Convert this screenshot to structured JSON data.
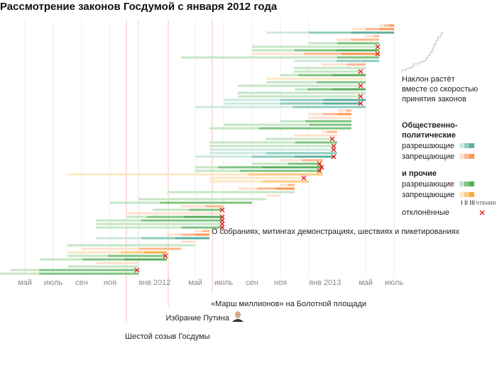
{
  "chart_data": {
    "type": "bar",
    "subtype": "gantt",
    "title": "Рассмотрение законов Госдумой с января 2012 года",
    "x_unit": "months since January 2011",
    "xlim": [
      2.25,
      31
    ],
    "ticks": [
      {
        "m": 4,
        "label": "май"
      },
      {
        "m": 6,
        "label": "июль"
      },
      {
        "m": 8,
        "label": "сен"
      },
      {
        "m": 10,
        "label": "ноя"
      },
      {
        "m": 12,
        "label": "янв 2012"
      },
      {
        "m": 16,
        "label": "май"
      },
      {
        "m": 18,
        "label": "июль"
      },
      {
        "m": 20,
        "label": "сен"
      },
      {
        "m": 22,
        "label": "ноя"
      },
      {
        "m": 24,
        "label": "янв 2013"
      },
      {
        "m": 28,
        "label": "май"
      },
      {
        "m": 30,
        "label": "июль"
      }
    ],
    "events": [
      {
        "m": 11.15,
        "label": "Шестой созыв Госдумы"
      },
      {
        "m": 14.1,
        "label": "Избрание Путина"
      },
      {
        "m": 17.2,
        "label": "«Марш миллионов» на Болотной площади"
      }
    ],
    "annotation": "О собраниях, митингах демонстрациях, шествиях и пикетированиях",
    "colors": {
      "pa": [
        "#cde8e2",
        "#8ccbbd",
        "#5cb09e"
      ],
      "pf": [
        "#fde0cd",
        "#fdb68c",
        "#fd9550"
      ],
      "oa": [
        "#c4e6c4",
        "#7dc47f",
        "#58ad5c"
      ],
      "of": [
        "#fde8c4",
        "#fdca7f",
        "#fca83c"
      ],
      "rejected": "#e8201a",
      "event": "#f6c2b5"
    },
    "rows": [
      [
        "pf",
        [
          28.95,
          29.3,
          29.65,
          30
        ],
        false
      ],
      [
        "pf",
        [
          27,
          28,
          29,
          30
        ],
        false
      ],
      [
        "pa",
        [
          21,
          24,
          27,
          30
        ],
        false
      ],
      [
        "pf",
        [
          27.95,
          28.6,
          28.95
        ],
        false
      ],
      [
        "pf",
        [
          25.95,
          26.95,
          28.95
        ],
        false
      ],
      [
        "oa",
        [
          23.95,
          26,
          28.95
        ],
        false
      ],
      [
        "oa",
        [
          20,
          28.95
        ],
        true
      ],
      [
        "oa",
        [
          20,
          23,
          25.95,
          28.95
        ],
        false
      ],
      [
        "pf",
        [
          20,
          23.65,
          26.3,
          28.95
        ],
        true
      ],
      [
        "oa",
        [
          15,
          26,
          28.95
        ],
        false
      ],
      [
        "pa",
        [
          22.95,
          25.95,
          28.95
        ],
        false
      ],
      [
        "pf",
        [
          24.95,
          26.7,
          28
        ],
        false
      ],
      [
        "oa",
        [
          22.95,
          28
        ],
        false
      ],
      [
        "oa",
        [
          22.95,
          27.75
        ],
        true
      ],
      [
        "oa",
        [
          22,
          23.25,
          25.6,
          28
        ],
        false
      ],
      [
        "of",
        [
          21,
          28
        ],
        false
      ],
      [
        "oa",
        [
          21,
          24.55,
          28
        ],
        false
      ],
      [
        "oa",
        [
          19,
          27.75
        ],
        true
      ],
      [
        "oa",
        [
          23,
          23.9,
          25.6,
          28
        ],
        false
      ],
      [
        "oa",
        [
          19,
          28
        ],
        false
      ],
      [
        "oa",
        [
          19,
          27.75
        ],
        true
      ],
      [
        "pa",
        [
          18,
          22,
          25,
          28
        ],
        false
      ],
      [
        "pa",
        [
          18,
          22,
          25,
          27.75
        ],
        true
      ],
      [
        "pa",
        [
          16,
          22.85,
          28
        ],
        false
      ],
      [
        "pf",
        [
          26,
          26.65,
          27
        ],
        false
      ],
      [
        "pf",
        [
          24,
          25,
          26,
          27
        ],
        false
      ],
      [
        "pf",
        [
          24,
          27
        ],
        false
      ],
      [
        "oa",
        [
          22,
          23.75,
          27
        ],
        false
      ],
      [
        "oa",
        [
          18,
          24.05,
          27
        ],
        false
      ],
      [
        "oa",
        [
          17,
          20.5,
          27
        ],
        false
      ],
      [
        "pf",
        [
          24.95,
          25.3,
          26
        ],
        false
      ],
      [
        "pf",
        [
          23,
          26
        ],
        false
      ],
      [
        "oa",
        [
          20.95,
          25.75
        ],
        true
      ],
      [
        "oa",
        [
          17,
          23.05,
          26
        ],
        false
      ],
      [
        "oa",
        [
          17,
          25.85
        ],
        true
      ],
      [
        "pa",
        [
          17,
          25.85
        ],
        true
      ],
      [
        "pa",
        [
          17,
          21,
          26
        ],
        false
      ],
      [
        "pa",
        [
          16,
          20,
          23,
          25.85
        ],
        true
      ],
      [
        "pf",
        [
          21.95,
          23.5,
          25
        ],
        false
      ],
      [
        "oa",
        [
          20,
          22.55,
          24.85
        ],
        true
      ],
      [
        "oa",
        [
          16,
          17.6,
          20.7,
          25
        ],
        true
      ],
      [
        "oa",
        [
          16,
          19.15,
          24.85
        ],
        true
      ],
      [
        "of",
        [
          7,
          19.7,
          25
        ],
        false
      ],
      [
        "of",
        [
          17,
          23.75
        ],
        true
      ],
      [
        "of",
        [
          17,
          20.75,
          24
        ],
        false
      ],
      [
        "pf",
        [
          21.95,
          22.5,
          23
        ],
        false
      ],
      [
        "pf",
        [
          19,
          20.35,
          21.65,
          23
        ],
        false
      ],
      [
        "oa",
        [
          14,
          23
        ],
        false
      ],
      [
        "pf",
        [
          21,
          22
        ],
        false
      ],
      [
        "oa",
        [
          12,
          21
        ],
        false
      ],
      [
        "oa",
        [
          10,
          13.5,
          20
        ],
        false
      ],
      [
        "pf",
        [
          14.95,
          16.7,
          18
        ],
        false
      ],
      [
        "oa",
        [
          13,
          15.55,
          18
        ],
        true
      ],
      [
        "pf",
        [
          11.1,
          18
        ],
        false
      ],
      [
        "oa",
        [
          11.2,
          12.6,
          15.25,
          18
        ],
        true
      ],
      [
        "oa",
        [
          9,
          12.2,
          18
        ],
        true
      ],
      [
        "oa",
        [
          9,
          18
        ],
        true
      ],
      [
        "oa",
        [
          9,
          15.05,
          18
        ],
        true
      ],
      [
        "pf",
        [
          15.95,
          16.5,
          17
        ],
        false
      ],
      [
        "pf",
        [
          14,
          15,
          16,
          17
        ],
        false
      ],
      [
        "pa",
        [
          9,
          12.2,
          14.6,
          17
        ],
        false
      ],
      [
        "pf",
        [
          15,
          16
        ],
        false
      ],
      [
        "oa",
        [
          7,
          16
        ],
        false
      ],
      [
        "pf",
        [
          8,
          12.05,
          15
        ],
        false
      ],
      [
        "of",
        [
          7,
          10.75,
          12.4,
          14
        ],
        false
      ],
      [
        "oa",
        [
          7,
          9.85,
          14
        ],
        true
      ],
      [
        "oa",
        [
          5.05,
          8.05,
          11,
          14
        ],
        false
      ],
      [
        "pf",
        [
          9,
          12
        ],
        false
      ],
      [
        "oa",
        [
          7.05,
          12
        ],
        false
      ],
      [
        "oa",
        [
          3,
          5,
          12
        ],
        true
      ],
      [
        "oa",
        [
          2.25,
          5,
          12
        ],
        false
      ]
    ]
  },
  "legend": {
    "slope_note": [
      "Наклон растёт",
      "вместе со скоростью",
      "принятия законов"
    ],
    "group1": [
      "Общественно-",
      "политические"
    ],
    "group2": "и прочие",
    "allow": "разрешающие",
    "forbid": "запрещающие",
    "readings": "I II III",
    "reading_label": "чтение",
    "rejected": "отклонённые"
  }
}
